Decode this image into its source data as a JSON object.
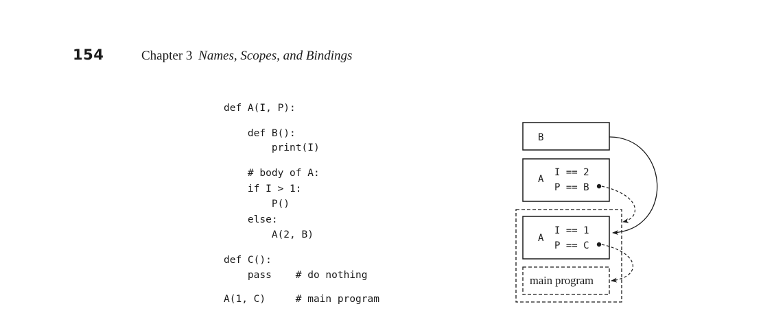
{
  "header": {
    "page_number": "154",
    "chapter": "Chapter 3",
    "title": "Names, Scopes, and Bindings"
  },
  "code_lines": [
    "def A(I, P):",
    "    def B():",
    "        print(I)",
    "    # body of A:",
    "    if I > 1:",
    "        P()",
    "    else:",
    "        A(2, B)",
    "def C():",
    "    pass    # do nothing",
    "A(1, C)     # main program"
  ],
  "diagram": {
    "frame_b": {
      "label": "B"
    },
    "frame_a_inner": {
      "label": "A",
      "line1": "I == 2",
      "line2": "P == B"
    },
    "frame_a_outer": {
      "label": "A",
      "line1": "I == 1",
      "line2": "P == C"
    },
    "main_frame": {
      "label": "main program"
    }
  }
}
